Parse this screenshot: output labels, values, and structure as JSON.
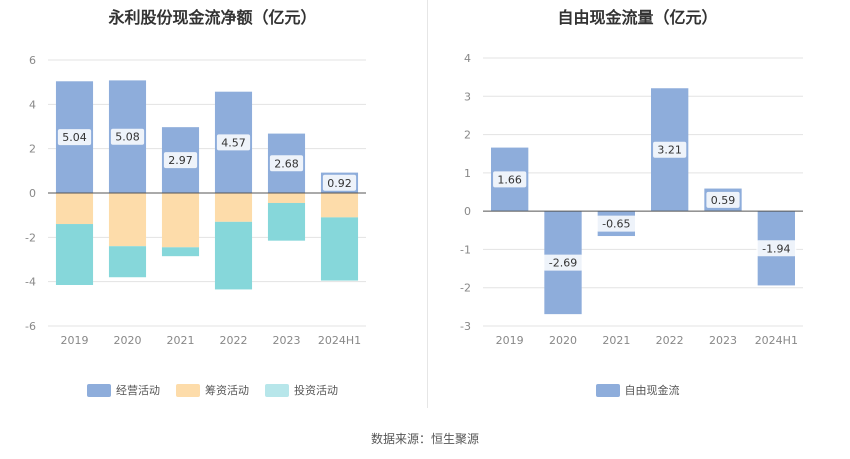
{
  "source_label": "数据来源：恒生聚源",
  "colors": {
    "operating": "#8eaddb",
    "financing": "#fddcaa",
    "investing": "#86d7da",
    "investing_legend": "#b7e6ea",
    "fcf": "#8eaddb",
    "grid": "#e3e3e3",
    "axis": "#555555",
    "tick": "#888888"
  },
  "chart_data": [
    {
      "type": "bar",
      "stacked": true,
      "title": "永利股份现金流净额（亿元）",
      "categories": [
        "2019",
        "2020",
        "2021",
        "2022",
        "2023",
        "2024H1"
      ],
      "ylim": [
        -6,
        6
      ],
      "yticks": [
        6,
        4,
        2,
        0,
        -2,
        -4,
        -6
      ],
      "grid": true,
      "legend_position": "bottom",
      "series": [
        {
          "name": "经营活动",
          "values": [
            5.04,
            5.08,
            2.97,
            4.57,
            2.68,
            0.92
          ],
          "labels": [
            "5.04",
            "5.08",
            "2.97",
            "4.57",
            "2.68",
            "0.92"
          ]
        },
        {
          "name": "筹资活动",
          "values": [
            -1.4,
            -2.4,
            -2.45,
            -1.3,
            -0.45,
            -1.1
          ]
        },
        {
          "name": "投资活动",
          "values": [
            -2.75,
            -1.4,
            -0.4,
            -3.05,
            -1.7,
            -2.85
          ]
        }
      ]
    },
    {
      "type": "bar",
      "title": "自由现金流量（亿元）",
      "categories": [
        "2019",
        "2020",
        "2021",
        "2022",
        "2023",
        "2024H1"
      ],
      "ylim": [
        -3,
        4
      ],
      "yticks": [
        4,
        3,
        2,
        1,
        0,
        -1,
        -2,
        -3
      ],
      "grid": true,
      "legend_position": "bottom",
      "series": [
        {
          "name": "自由现金流",
          "values": [
            1.66,
            -2.69,
            -0.65,
            3.21,
            0.59,
            -1.94
          ],
          "labels": [
            "1.66",
            "-2.69",
            "-0.65",
            "3.21",
            "0.59",
            "-1.94"
          ]
        }
      ]
    }
  ]
}
